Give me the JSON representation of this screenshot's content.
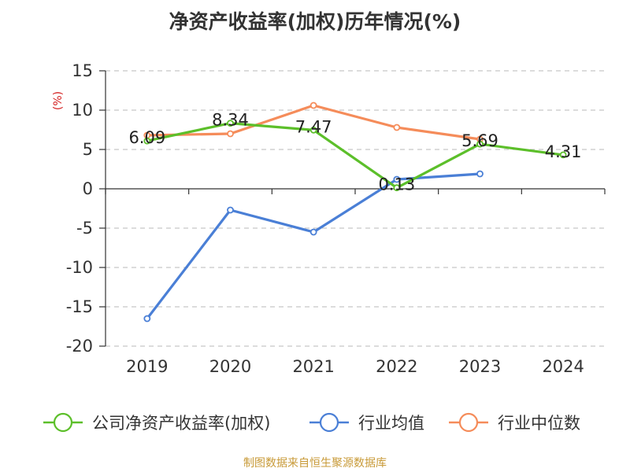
{
  "chart_data": {
    "type": "line",
    "title": "净资产收益率(加权)历年情况(%)",
    "ylabel": "(%)",
    "xlabel": "",
    "categories": [
      "2019",
      "2020",
      "2021",
      "2022",
      "2023",
      "2024"
    ],
    "ylim": [
      -20,
      15
    ],
    "yticks": [
      15,
      10,
      5,
      0,
      -5,
      -10,
      -15,
      -20
    ],
    "grid": true,
    "legend_position": "bottom",
    "series": [
      {
        "name": "公司净资产收益率(加权)",
        "color": "#5cbf2a",
        "values": [
          6.09,
          8.34,
          7.47,
          0.13,
          5.69,
          4.31
        ],
        "labels": [
          "6.09",
          "8.34",
          "7.47",
          "0.13",
          "5.69",
          "4.31"
        ],
        "show_labels": true
      },
      {
        "name": "行业均值",
        "color": "#4a7fd6",
        "values": [
          -16.5,
          -2.7,
          -5.5,
          1.2,
          1.9,
          null
        ],
        "show_labels": false
      },
      {
        "name": "行业中位数",
        "color": "#f58c5a",
        "values": [
          6.8,
          7.0,
          10.6,
          7.8,
          6.3,
          null
        ],
        "show_labels": false
      }
    ]
  },
  "source": "制图数据来自恒生聚源数据库"
}
